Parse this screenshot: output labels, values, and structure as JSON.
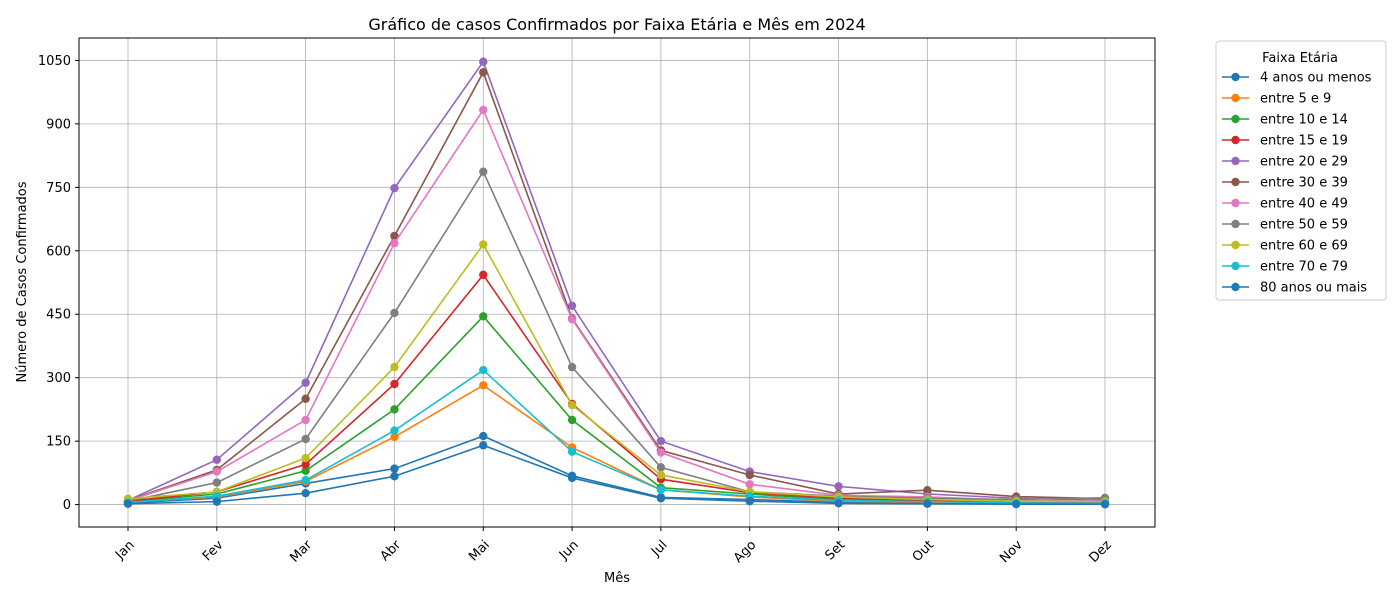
{
  "chart_data": {
    "type": "line",
    "title": "Gráfico de casos Confirmados por Faixa Etária e Mês em 2024",
    "xlabel": "Mês",
    "ylabel": "Número de Casos Confirmados",
    "categories": [
      "Jan",
      "Fev",
      "Mar",
      "Abr",
      "Mai",
      "Jun",
      "Jul",
      "Ago",
      "Set",
      "Out",
      "Nov",
      "Dez"
    ],
    "ylim": [
      -53,
      1103
    ],
    "yticks": [
      0,
      150,
      300,
      450,
      600,
      750,
      900,
      1050
    ],
    "grid": true,
    "legend_title": "Faixa Etária",
    "legend_position": "outside-right",
    "series": [
      {
        "name": "4 anos ou menos",
        "color": "#1f77b4",
        "values": [
          4,
          15,
          50,
          85,
          162,
          68,
          17,
          12,
          5,
          4,
          2,
          1
        ]
      },
      {
        "name": "entre 5 e 9",
        "color": "#ff7f0e",
        "values": [
          6,
          18,
          55,
          160,
          282,
          135,
          35,
          18,
          8,
          6,
          3,
          2
        ]
      },
      {
        "name": "entre 10 e 14",
        "color": "#2ca02c",
        "values": [
          7,
          25,
          80,
          225,
          445,
          200,
          40,
          25,
          12,
          8,
          4,
          3
        ]
      },
      {
        "name": "entre 15 e 19",
        "color": "#d62728",
        "values": [
          8,
          30,
          95,
          285,
          543,
          238,
          60,
          28,
          15,
          10,
          5,
          4
        ]
      },
      {
        "name": "entre 20 e 29",
        "color": "#9467bd",
        "values": [
          10,
          106,
          288,
          748,
          1047,
          470,
          150,
          78,
          43,
          25,
          15,
          10
        ]
      },
      {
        "name": "entre 30 e 39",
        "color": "#8c564b",
        "values": [
          10,
          82,
          250,
          635,
          1022,
          440,
          128,
          70,
          25,
          34,
          19,
          14
        ]
      },
      {
        "name": "entre 40 e 49",
        "color": "#e377c2",
        "values": [
          9,
          78,
          200,
          618,
          933,
          438,
          123,
          48,
          22,
          18,
          10,
          8
        ]
      },
      {
        "name": "entre 50 e 59",
        "color": "#7f7f7f",
        "values": [
          8,
          52,
          155,
          453,
          787,
          325,
          88,
          30,
          20,
          15,
          12,
          16
        ]
      },
      {
        "name": "entre 60 e 69",
        "color": "#bcbd22",
        "values": [
          14,
          30,
          110,
          325,
          615,
          235,
          70,
          30,
          18,
          12,
          8,
          7
        ]
      },
      {
        "name": "entre 70 e 79",
        "color": "#17becf",
        "values": [
          5,
          20,
          58,
          175,
          318,
          125,
          35,
          20,
          10,
          7,
          4,
          3
        ]
      },
      {
        "name": "80 anos ou mais",
        "color": "#1f77b4",
        "values": [
          2,
          7,
          27,
          67,
          140,
          63,
          15,
          8,
          3,
          2,
          1,
          1
        ]
      }
    ]
  }
}
